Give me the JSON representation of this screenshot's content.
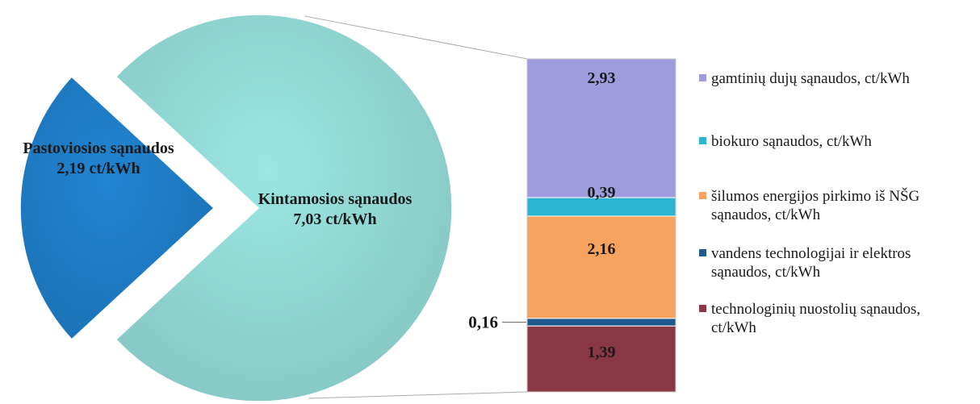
{
  "chart_data": {
    "type": "pie-of-bar",
    "title": "",
    "pie": {
      "slices": [
        {
          "label": "Pastoviosios sąnaudos",
          "value": 2.19,
          "value_text": "2,19 ct/kWh",
          "color": "#1f7ec8",
          "exploded": true
        },
        {
          "label": "Kintamosios sąnaudos",
          "value": 7.03,
          "value_text": "7,03 ct/kWh",
          "color": "#94dbd6",
          "exploded": false
        }
      ]
    },
    "bar": {
      "segments": [
        {
          "legend": "gamtinių dujų sąnaudos, ct/kWh",
          "value": 2.93,
          "value_text": "2,93",
          "color": "#9f9cde"
        },
        {
          "legend": "biokuro sąnaudos, ct/kWh",
          "value": 0.39,
          "value_text": "0,39",
          "color": "#2cb5cf"
        },
        {
          "legend": "šilumos energijos pirkimo iš NŠG sąnaudos, ct/kWh",
          "value": 2.16,
          "value_text": "2,16",
          "color": "#f7a25e"
        },
        {
          "legend": "vandens technologijai ir elektros sąnaudos, ct/kWh",
          "value": 0.16,
          "value_text": "0,16",
          "color": "#1f5a8f"
        },
        {
          "legend": "technologinių nuostolių sąnaudos, ct/kWh",
          "value": 1.39,
          "value_text": "1,39",
          "color": "#8a3846"
        }
      ]
    },
    "legend_placement": "right"
  }
}
